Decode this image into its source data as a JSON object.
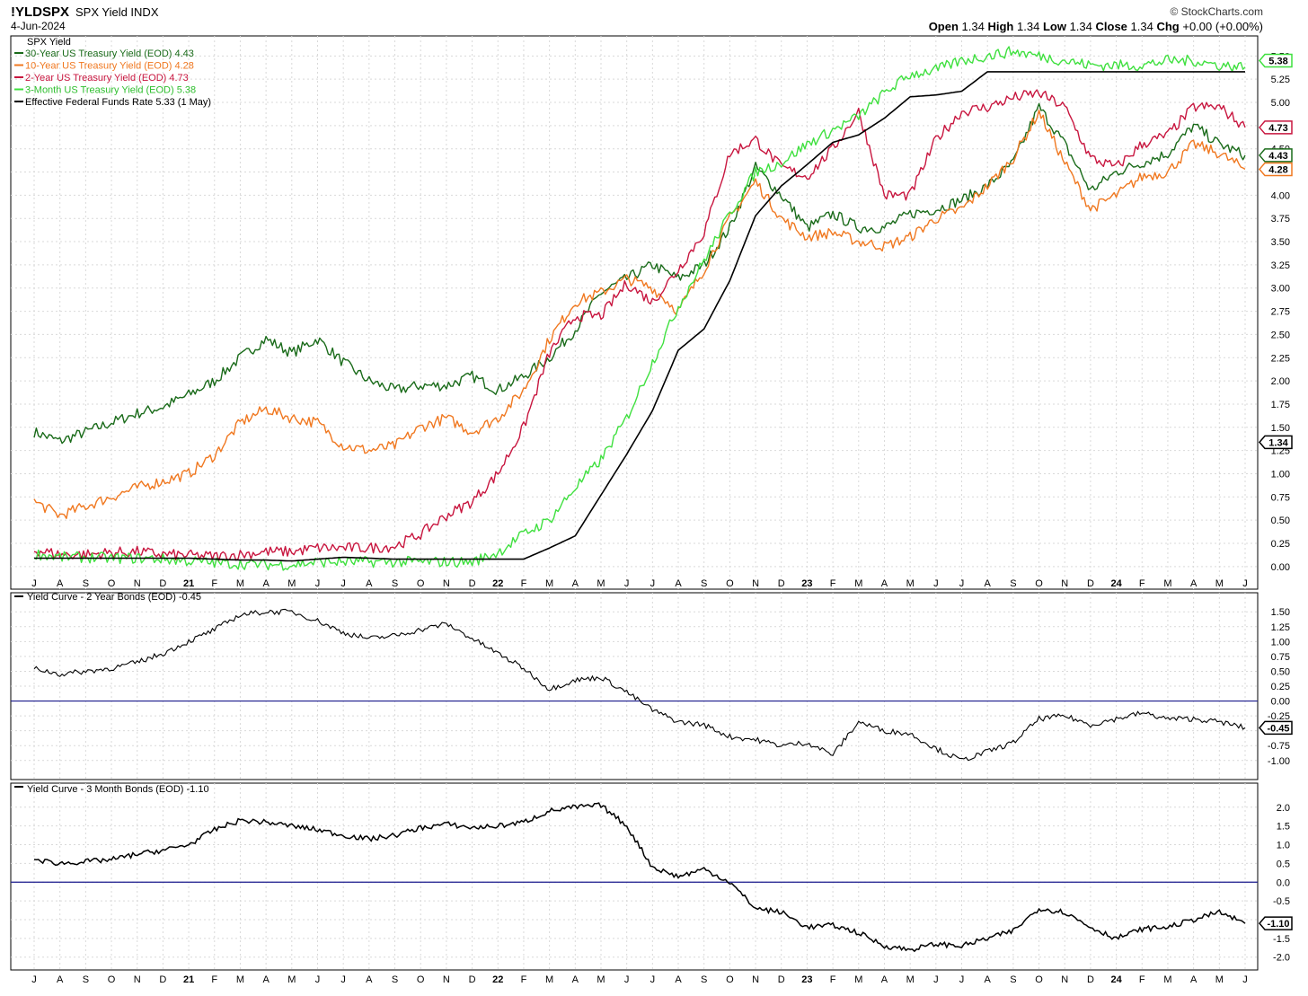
{
  "header": {
    "symbol": "!YLDSPX",
    "description": "SPX Yield INDX",
    "date": "4-Jun-2024",
    "brand": "© StockCharts.com",
    "open_label": "Open",
    "open": "1.34",
    "high_label": "High",
    "high": "1.34",
    "low_label": "Low",
    "low": "1.34",
    "close_label": "Close",
    "close": "1.34",
    "chg_label": "Chg",
    "chg": "+0.00 (+0.00%)"
  },
  "chart_data": [
    {
      "type": "line",
      "panel": "main",
      "title": "SPX Yield",
      "ylim": [
        -0.05,
        5.6
      ],
      "yticks": [
        "5.50",
        "5.25",
        "5.00",
        "4.75",
        "4.50",
        "4.25",
        "4.00",
        "3.75",
        "3.50",
        "3.25",
        "3.00",
        "2.75",
        "2.50",
        "2.25",
        "2.00",
        "1.75",
        "1.50",
        "1.25",
        "1.00",
        "0.75",
        "0.50",
        "0.25",
        "0.00"
      ],
      "grid": true,
      "legend_position": "top-left",
      "x_months": [
        "J",
        "A",
        "S",
        "O",
        "N",
        "D",
        "21",
        "F",
        "M",
        "A",
        "M",
        "J",
        "J",
        "A",
        "S",
        "O",
        "N",
        "D",
        "22",
        "F",
        "M",
        "A",
        "M",
        "J",
        "J",
        "A",
        "S",
        "O",
        "N",
        "D",
        "23",
        "F",
        "M",
        "A",
        "M",
        "J",
        "J",
        "A",
        "S",
        "O",
        "N",
        "D",
        "24",
        "F",
        "M",
        "A",
        "M",
        "J"
      ],
      "series": [
        {
          "name": "30-Year US Treasury Yield (EOD)",
          "legend": "30-Year US Treasury Yield (EOD) 4.43",
          "last": "4.43",
          "color": "#1a6b1a",
          "values": [
            1.45,
            1.35,
            1.45,
            1.55,
            1.65,
            1.72,
            1.85,
            2.0,
            2.25,
            2.45,
            2.3,
            2.45,
            2.2,
            2.0,
            1.9,
            1.95,
            1.95,
            2.05,
            1.9,
            2.05,
            2.25,
            2.55,
            2.95,
            3.1,
            3.25,
            3.1,
            3.25,
            3.65,
            4.3,
            4.0,
            3.65,
            3.8,
            3.65,
            3.65,
            3.8,
            3.85,
            3.95,
            4.1,
            4.35,
            4.95,
            4.55,
            4.05,
            4.25,
            4.35,
            4.45,
            4.75,
            4.55,
            4.43
          ]
        },
        {
          "name": "10-Year US Treasury Yield (EOD)",
          "legend": "10-Year US Treasury Yield (EOD) 4.28",
          "last": "4.28",
          "color": "#f07820",
          "values": [
            0.7,
            0.55,
            0.65,
            0.75,
            0.85,
            0.92,
            1.0,
            1.2,
            1.55,
            1.7,
            1.6,
            1.55,
            1.3,
            1.25,
            1.3,
            1.5,
            1.6,
            1.45,
            1.6,
            1.9,
            2.45,
            2.85,
            2.95,
            3.1,
            3.0,
            2.75,
            3.2,
            3.75,
            4.15,
            3.75,
            3.55,
            3.6,
            3.5,
            3.45,
            3.55,
            3.75,
            3.85,
            4.1,
            4.4,
            4.9,
            4.35,
            3.85,
            4.0,
            4.2,
            4.25,
            4.55,
            4.45,
            4.28
          ]
        },
        {
          "name": "2-Year US Treasury Yield (EOD)",
          "legend": "2-Year US Treasury Yield (EOD) 4.73",
          "last": "4.73",
          "color": "#c8163f",
          "values": [
            0.18,
            0.13,
            0.13,
            0.15,
            0.16,
            0.13,
            0.12,
            0.11,
            0.13,
            0.16,
            0.16,
            0.2,
            0.2,
            0.2,
            0.22,
            0.35,
            0.55,
            0.7,
            1.0,
            1.5,
            2.3,
            2.7,
            2.7,
            3.05,
            2.85,
            3.2,
            3.6,
            4.45,
            4.6,
            4.3,
            4.2,
            4.5,
            4.9,
            4.0,
            4.0,
            4.6,
            4.9,
            4.95,
            5.05,
            5.1,
            4.95,
            4.4,
            4.3,
            4.55,
            4.65,
            4.95,
            4.95,
            4.73
          ]
        },
        {
          "name": "3-Month US Treasury Yield (EOD)",
          "legend": "3-Month US Treasury Yield (EOD) 5.38",
          "last": "5.38",
          "color": "#3fe03f",
          "values": [
            0.14,
            0.1,
            0.1,
            0.09,
            0.09,
            0.08,
            0.06,
            0.04,
            0.03,
            0.02,
            0.02,
            0.05,
            0.05,
            0.05,
            0.05,
            0.05,
            0.05,
            0.05,
            0.15,
            0.35,
            0.5,
            0.85,
            1.15,
            1.6,
            2.2,
            2.8,
            3.3,
            3.8,
            4.25,
            4.35,
            4.55,
            4.7,
            4.85,
            5.1,
            5.3,
            5.35,
            5.45,
            5.5,
            5.55,
            5.5,
            5.45,
            5.4,
            5.4,
            5.4,
            5.45,
            5.45,
            5.4,
            5.38
          ]
        },
        {
          "name": "Effective Federal Funds Rate",
          "legend": "Effective Federal Funds Rate 5.33 (1 May)",
          "last": "5.33",
          "color": "#000000",
          "values": [
            0.09,
            0.09,
            0.09,
            0.09,
            0.09,
            0.09,
            0.09,
            0.08,
            0.07,
            0.07,
            0.06,
            0.08,
            0.1,
            0.09,
            0.08,
            0.08,
            0.08,
            0.08,
            0.08,
            0.08,
            0.2,
            0.33,
            0.77,
            1.21,
            1.68,
            2.33,
            2.56,
            3.08,
            3.78,
            4.1,
            4.33,
            4.57,
            4.65,
            4.83,
            5.06,
            5.08,
            5.12,
            5.33,
            5.33,
            5.33,
            5.33,
            5.33,
            5.33,
            5.33,
            5.33,
            5.33,
            5.33,
            5.33
          ]
        }
      ],
      "last_value_tags": [
        {
          "value": "5.38",
          "color": "#3fe03f"
        },
        {
          "value": "4.73",
          "color": "#c8163f"
        },
        {
          "value": "4.43",
          "color": "#1a6b1a"
        },
        {
          "value": "4.28",
          "color": "#f07820"
        },
        {
          "value": "1.34",
          "color": "#000000"
        }
      ]
    },
    {
      "type": "line",
      "panel": "middle",
      "legend": "Yield Curve - 2 Year Bonds (EOD) -0.45",
      "last": "-0.45",
      "color": "#000000",
      "ylim": [
        -1.2,
        1.7
      ],
      "yticks": [
        "1.50",
        "1.25",
        "1.00",
        "0.75",
        "0.50",
        "0.25",
        "0.00",
        "-0.25",
        "-0.50",
        "-0.75",
        "-1.00"
      ],
      "zero_line_color": "#1a1a8c",
      "values": [
        0.55,
        0.45,
        0.5,
        0.55,
        0.65,
        0.8,
        1.0,
        1.2,
        1.45,
        1.5,
        1.5,
        1.35,
        1.15,
        1.05,
        1.1,
        1.2,
        1.3,
        1.05,
        0.8,
        0.55,
        0.2,
        0.35,
        0.4,
        0.15,
        -0.15,
        -0.35,
        -0.4,
        -0.6,
        -0.65,
        -0.75,
        -0.7,
        -0.9,
        -0.35,
        -0.5,
        -0.55,
        -0.8,
        -1.0,
        -0.85,
        -0.7,
        -0.3,
        -0.25,
        -0.4,
        -0.3,
        -0.2,
        -0.3,
        -0.3,
        -0.35,
        -0.45
      ]
    },
    {
      "type": "line",
      "panel": "bottom",
      "legend": "Yield Curve - 3 Month Bonds (EOD) -1.10",
      "last": "-1.10",
      "color": "#000000",
      "ylim": [
        -2.15,
        2.45
      ],
      "yticks": [
        "2.0",
        "1.5",
        "1.0",
        "0.5",
        "0.0",
        "-0.5",
        "-1.0",
        "-1.5",
        "-2.0"
      ],
      "zero_line_color": "#1a1a8c",
      "values": [
        0.6,
        0.5,
        0.55,
        0.6,
        0.75,
        0.85,
        1.0,
        1.4,
        1.65,
        1.6,
        1.5,
        1.4,
        1.25,
        1.15,
        1.25,
        1.45,
        1.55,
        1.45,
        1.5,
        1.6,
        1.9,
        2.0,
        2.05,
        1.5,
        0.4,
        0.15,
        0.35,
        0.0,
        -0.7,
        -0.8,
        -1.2,
        -1.15,
        -1.35,
        -1.7,
        -1.8,
        -1.65,
        -1.7,
        -1.5,
        -1.3,
        -0.7,
        -0.8,
        -1.2,
        -1.5,
        -1.25,
        -1.2,
        -1.0,
        -0.8,
        -1.1
      ]
    }
  ]
}
